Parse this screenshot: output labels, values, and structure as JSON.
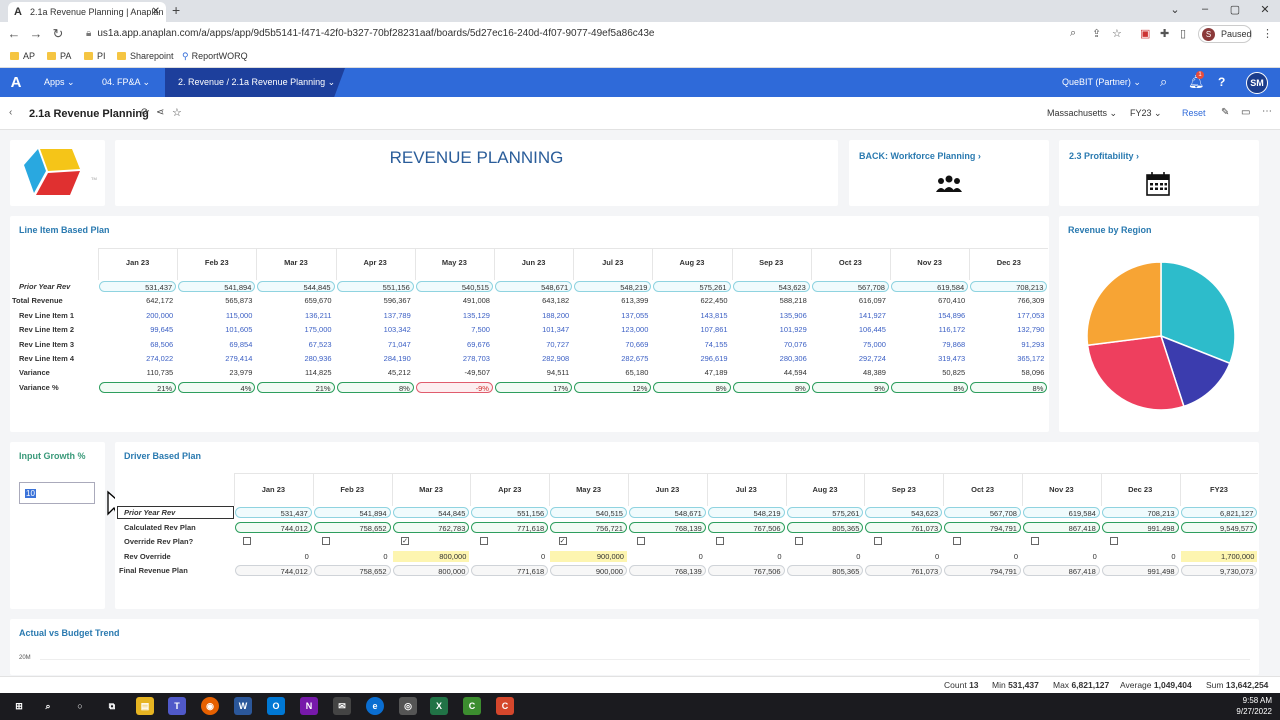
{
  "browser": {
    "tab_title": "2.1a Revenue Planning | Anaplan",
    "url": "us1a.app.anaplan.com/a/apps/app/9d5b5141-f471-42f0-b327-70bf28231aaf/boards/5d27ec16-240d-4f07-9077-49ef5a86c43e",
    "profile": "Paused",
    "profile_initial": "S",
    "bookmarks": [
      "AP",
      "PA",
      "PI",
      "Sharepoint",
      "ReportWORQ"
    ]
  },
  "appnav": {
    "logo": "A",
    "apps": "Apps",
    "model": "04. FP&A",
    "breadcrumb": "2. Revenue / 2.1a Revenue Planning",
    "workspace": "QueBIT (Partner)",
    "notif_count": "1",
    "user_initials": "SM"
  },
  "page": {
    "title": "2.1a Revenue Planning",
    "region": "Massachusetts",
    "year": "FY23",
    "reset": "Reset"
  },
  "banner": {
    "heading": "REVENUE PLANNING",
    "back_link": "BACK: Workforce Planning",
    "next_link": "2.3 Profitability",
    "logo_tm": "TM"
  },
  "months": [
    "Jan 23",
    "Feb 23",
    "Mar 23",
    "Apr 23",
    "May 23",
    "Jun 23",
    "Jul 23",
    "Aug 23",
    "Sep 23",
    "Oct 23",
    "Nov 23",
    "Dec 23"
  ],
  "line_plan": {
    "title": "Line Item Based Plan",
    "rows": [
      {
        "label": "Prior Year Rev",
        "style": "pill",
        "italic": true,
        "values": [
          "531,437",
          "541,894",
          "544,845",
          "551,156",
          "540,515",
          "548,671",
          "548,219",
          "575,261",
          "543,623",
          "567,708",
          "619,584",
          "708,213"
        ]
      },
      {
        "label": "Total Revenue",
        "style": "plain",
        "values": [
          "642,172",
          "565,873",
          "659,670",
          "596,367",
          "491,008",
          "643,182",
          "613,399",
          "622,450",
          "588,218",
          "616,097",
          "670,410",
          "766,309"
        ]
      },
      {
        "label": "Rev Line Item 1",
        "style": "blue",
        "values": [
          "200,000",
          "115,000",
          "136,211",
          "137,789",
          "135,129",
          "188,200",
          "137,055",
          "143,815",
          "135,906",
          "141,927",
          "154,896",
          "177,053"
        ]
      },
      {
        "label": "Rev Line Item 2",
        "style": "blue",
        "values": [
          "99,645",
          "101,605",
          "175,000",
          "103,342",
          "7,500",
          "101,347",
          "123,000",
          "107,861",
          "101,929",
          "106,445",
          "116,172",
          "132,790"
        ]
      },
      {
        "label": "Rev Line Item 3",
        "style": "blue",
        "values": [
          "68,506",
          "69,854",
          "67,523",
          "71,047",
          "69,676",
          "70,727",
          "70,669",
          "74,155",
          "70,076",
          "75,000",
          "79,868",
          "91,293"
        ]
      },
      {
        "label": "Rev Line Item 4",
        "style": "blue",
        "values": [
          "274,022",
          "279,414",
          "280,936",
          "284,190",
          "278,703",
          "282,908",
          "282,675",
          "296,619",
          "280,306",
          "292,724",
          "319,473",
          "365,172"
        ]
      },
      {
        "label": "Variance",
        "style": "plain",
        "values": [
          "110,735",
          "23,979",
          "114,825",
          "45,212",
          "-49,507",
          "94,511",
          "65,180",
          "47,189",
          "44,594",
          "48,389",
          "50,825",
          "58,096"
        ]
      },
      {
        "label": "Variance %",
        "style": "pct",
        "values": [
          "21%",
          "4%",
          "21%",
          "8%",
          "-9%",
          "17%",
          "12%",
          "8%",
          "8%",
          "9%",
          "8%",
          "8%"
        ]
      }
    ]
  },
  "region": {
    "title": "Revenue by Region"
  },
  "chart_data": {
    "type": "pie",
    "title": "Revenue by Region",
    "values": [
      31,
      14,
      28,
      27
    ],
    "colors": [
      "#2dbccb",
      "#3b3cae",
      "#ee3f5e",
      "#f7a434"
    ]
  },
  "growth": {
    "title": "Input Growth %",
    "value": "10"
  },
  "driver_plan": {
    "title": "Driver Based Plan",
    "columns": [
      "Jan 23",
      "Feb 23",
      "Mar 23",
      "Apr 23",
      "May 23",
      "Jun 23",
      "Jul 23",
      "Aug 23",
      "Sep 23",
      "Oct 23",
      "Nov 23",
      "Dec 23",
      "FY23"
    ],
    "rows": [
      {
        "label": "Prior Year Rev",
        "style": "pill",
        "italic": true,
        "values": [
          "531,437",
          "541,894",
          "544,845",
          "551,156",
          "540,515",
          "548,671",
          "548,219",
          "575,261",
          "543,623",
          "567,708",
          "619,584",
          "708,213",
          "6,821,127"
        ]
      },
      {
        "label": "Calculated Rev Plan",
        "style": "green",
        "values": [
          "744,012",
          "758,652",
          "762,783",
          "771,618",
          "756,721",
          "768,139",
          "767,506",
          "805,365",
          "761,073",
          "794,791",
          "867,418",
          "991,498",
          "9,549,577"
        ]
      },
      {
        "label": "Override Rev Plan?",
        "style": "check",
        "values": [
          "",
          "",
          "✓",
          "",
          "✓",
          "",
          "",
          "",
          "",
          "",
          "",
          "",
          ""
        ]
      },
      {
        "label": "Rev Override",
        "style": "override",
        "values": [
          "0",
          "0",
          "800,000",
          "0",
          "900,000",
          "0",
          "0",
          "0",
          "0",
          "0",
          "0",
          "0",
          "1,700,000"
        ]
      },
      {
        "label": "Final Revenue Plan",
        "style": "gray",
        "values": [
          "744,012",
          "758,652",
          "800,000",
          "771,618",
          "900,000",
          "768,139",
          "767,506",
          "805,365",
          "761,073",
          "794,791",
          "867,418",
          "991,498",
          "9,730,073"
        ]
      }
    ]
  },
  "trend": {
    "title": "Actual vs Budget Trend",
    "y_tick": "20M"
  },
  "status": {
    "count_label": "Count",
    "count": "13",
    "min_label": "Min",
    "min": "531,437",
    "max_label": "Max",
    "max": "6,821,127",
    "avg_label": "Average",
    "avg": "1,049,404",
    "sum_label": "Sum",
    "sum": "13,642,254"
  },
  "taskbar": {
    "time": "9:58 AM",
    "date": "9/27/2022"
  }
}
